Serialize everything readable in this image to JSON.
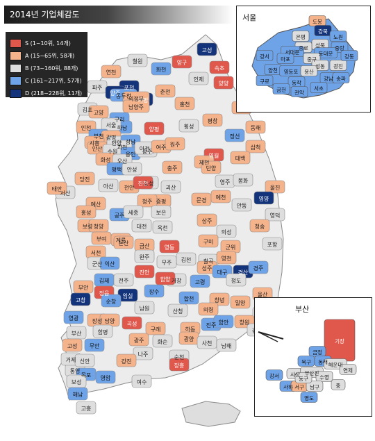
{
  "title": "2014년 기업체감도",
  "legend": [
    {
      "label": "S (1~10위, 14개)",
      "color": "#e0574c"
    },
    {
      "label": "A (15~65위, 58개)",
      "color": "#f5b38c"
    },
    {
      "label": "B (73~160위, 88개)",
      "color": "#dedede"
    },
    {
      "label": "C (161~217위, 57개)",
      "color": "#6fa3e8"
    },
    {
      "label": "D (218~228위, 11개)",
      "color": "#13337a"
    }
  ],
  "insets": {
    "seoul": {
      "title": "서울"
    },
    "busan": {
      "title": "부산"
    }
  },
  "regions": [
    {
      "name": "철원",
      "grade": "B"
    },
    {
      "name": "화천",
      "grade": "C"
    },
    {
      "name": "양구",
      "grade": "S"
    },
    {
      "name": "고성",
      "grade": "D"
    },
    {
      "name": "연천",
      "grade": "A"
    },
    {
      "name": "포천",
      "grade": "D"
    },
    {
      "name": "인제",
      "grade": "B"
    },
    {
      "name": "속초",
      "grade": "S"
    },
    {
      "name": "양양",
      "grade": "S"
    },
    {
      "name": "춘천",
      "grade": "A"
    },
    {
      "name": "파주",
      "grade": "B"
    },
    {
      "name": "양주",
      "grade": "D"
    },
    {
      "name": "가평",
      "grade": "D"
    },
    {
      "name": "동두천",
      "grade": "C"
    },
    {
      "name": "의정부",
      "grade": "A"
    },
    {
      "name": "남양주",
      "grade": "A"
    },
    {
      "name": "홍천",
      "grade": "A"
    },
    {
      "name": "강릉",
      "grade": "A"
    },
    {
      "name": "김포",
      "grade": "B"
    },
    {
      "name": "고양",
      "grade": "A"
    },
    {
      "name": "구리",
      "grade": "C"
    },
    {
      "name": "하남",
      "grade": "C"
    },
    {
      "name": "서울",
      "grade": "B"
    },
    {
      "name": "인천",
      "grade": "A"
    },
    {
      "name": "부천",
      "grade": "C"
    },
    {
      "name": "광명",
      "grade": "A"
    },
    {
      "name": "시흥",
      "grade": "A"
    },
    {
      "name": "안산",
      "grade": "A"
    },
    {
      "name": "안양",
      "grade": "B"
    },
    {
      "name": "성남",
      "grade": "C"
    },
    {
      "name": "과천",
      "grade": "B"
    },
    {
      "name": "수원",
      "grade": "B"
    },
    {
      "name": "용인",
      "grade": "C"
    },
    {
      "name": "광주",
      "grade": "B"
    },
    {
      "name": "양평",
      "grade": "S"
    },
    {
      "name": "횡성",
      "grade": "B"
    },
    {
      "name": "평창",
      "grade": "A"
    },
    {
      "name": "정선",
      "grade": "C"
    },
    {
      "name": "동해",
      "grade": "A"
    },
    {
      "name": "화성",
      "grade": "A"
    },
    {
      "name": "오산",
      "grade": "B"
    },
    {
      "name": "이천",
      "grade": "B"
    },
    {
      "name": "여주",
      "grade": "A"
    },
    {
      "name": "원주",
      "grade": "A"
    },
    {
      "name": "영월",
      "grade": "S"
    },
    {
      "name": "삼척",
      "grade": "A"
    },
    {
      "name": "평택",
      "grade": "C"
    },
    {
      "name": "안성",
      "grade": "B"
    },
    {
      "name": "제천",
      "grade": "A"
    },
    {
      "name": "태백",
      "grade": "A"
    },
    {
      "name": "당진",
      "grade": "A"
    },
    {
      "name": "아산",
      "grade": "B"
    },
    {
      "name": "천안",
      "grade": "A"
    },
    {
      "name": "음성",
      "grade": "B"
    },
    {
      "name": "충주",
      "grade": "A"
    },
    {
      "name": "단양",
      "grade": "A"
    },
    {
      "name": "서산",
      "grade": "B"
    },
    {
      "name": "진천",
      "grade": "S"
    },
    {
      "name": "괴산",
      "grade": "B"
    },
    {
      "name": "영주",
      "grade": "B"
    },
    {
      "name": "봉화",
      "grade": "B"
    },
    {
      "name": "울진",
      "grade": "A"
    },
    {
      "name": "태안",
      "grade": "A"
    },
    {
      "name": "예산",
      "grade": "A"
    },
    {
      "name": "증평",
      "grade": "A"
    },
    {
      "name": "청주",
      "grade": "A"
    },
    {
      "name": "문경",
      "grade": "A"
    },
    {
      "name": "예천",
      "grade": "A"
    },
    {
      "name": "영양",
      "grade": "D"
    },
    {
      "name": "홍성",
      "grade": "A"
    },
    {
      "name": "공주",
      "grade": "C"
    },
    {
      "name": "세종",
      "grade": "B"
    },
    {
      "name": "보은",
      "grade": "B"
    },
    {
      "name": "상주",
      "grade": "A"
    },
    {
      "name": "안동",
      "grade": "B"
    },
    {
      "name": "영덕",
      "grade": "B"
    },
    {
      "name": "보령",
      "grade": "A"
    },
    {
      "name": "청양",
      "grade": "A"
    },
    {
      "name": "대전",
      "grade": "B"
    },
    {
      "name": "옥천",
      "grade": "B"
    },
    {
      "name": "의성",
      "grade": "B"
    },
    {
      "name": "청송",
      "grade": "A"
    },
    {
      "name": "부여",
      "grade": "A"
    },
    {
      "name": "계룡",
      "grade": "A"
    },
    {
      "name": "논산",
      "grade": "A"
    },
    {
      "name": "영동",
      "grade": "S"
    },
    {
      "name": "구미",
      "grade": "A"
    },
    {
      "name": "군위",
      "grade": "A"
    },
    {
      "name": "포항",
      "grade": "B"
    },
    {
      "name": "서천",
      "grade": "A"
    },
    {
      "name": "금산",
      "grade": "A"
    },
    {
      "name": "김천",
      "grade": "B"
    },
    {
      "name": "칠곡",
      "grade": "B"
    },
    {
      "name": "영천",
      "grade": "A"
    },
    {
      "name": "군산",
      "grade": "B"
    },
    {
      "name": "익산",
      "grade": "C"
    },
    {
      "name": "완주",
      "grade": "B"
    },
    {
      "name": "무주",
      "grade": "B"
    },
    {
      "name": "성주",
      "grade": "A"
    },
    {
      "name": "경산",
      "grade": "D"
    },
    {
      "name": "경주",
      "grade": "C"
    },
    {
      "name": "김제",
      "grade": "C"
    },
    {
      "name": "전주",
      "grade": "B"
    },
    {
      "name": "진안",
      "grade": "S"
    },
    {
      "name": "거창",
      "grade": "B"
    },
    {
      "name": "고령",
      "grade": "C"
    },
    {
      "name": "대구",
      "grade": "C"
    },
    {
      "name": "청도",
      "grade": "B"
    },
    {
      "name": "부안",
      "grade": "A"
    },
    {
      "name": "정읍",
      "grade": "S"
    },
    {
      "name": "임실",
      "grade": "D"
    },
    {
      "name": "장수",
      "grade": "C"
    },
    {
      "name": "함양",
      "grade": "S"
    },
    {
      "name": "합천",
      "grade": "C"
    },
    {
      "name": "창녕",
      "grade": "A"
    },
    {
      "name": "밀양",
      "grade": "A"
    },
    {
      "name": "울산",
      "grade": "A"
    },
    {
      "name": "양산",
      "grade": "B"
    },
    {
      "name": "고창",
      "grade": "D"
    },
    {
      "name": "순창",
      "grade": "C"
    },
    {
      "name": "남원",
      "grade": "B"
    },
    {
      "name": "산청",
      "grade": "B"
    },
    {
      "name": "의령",
      "grade": "A"
    },
    {
      "name": "영광",
      "grade": "C"
    },
    {
      "name": "장성",
      "grade": "A"
    },
    {
      "name": "담양",
      "grade": "A"
    },
    {
      "name": "곡성",
      "grade": "S"
    },
    {
      "name": "구례",
      "grade": "A"
    },
    {
      "name": "하동",
      "grade": "A"
    },
    {
      "name": "진주",
      "grade": "C"
    },
    {
      "name": "함안",
      "grade": "C"
    },
    {
      "name": "창원",
      "grade": "A"
    },
    {
      "name": "김해",
      "grade": "B"
    },
    {
      "name": "부산",
      "grade": "B"
    },
    {
      "name": "함평",
      "grade": "B"
    },
    {
      "name": "광주",
      "grade": "A"
    },
    {
      "name": "화순",
      "grade": "B"
    },
    {
      "name": "광양",
      "grade": "A"
    },
    {
      "name": "사천",
      "grade": "B"
    },
    {
      "name": "고성",
      "grade": "A"
    },
    {
      "name": "무안",
      "grade": "C"
    },
    {
      "name": "나주",
      "grade": "B"
    },
    {
      "name": "순천",
      "grade": "B"
    },
    {
      "name": "남해",
      "grade": "B"
    },
    {
      "name": "통영",
      "grade": "B"
    },
    {
      "name": "거제",
      "grade": "B"
    },
    {
      "name": "신안",
      "grade": "B"
    },
    {
      "name": "목포",
      "grade": "C"
    },
    {
      "name": "영암",
      "grade": "C"
    },
    {
      "name": "강진",
      "grade": "A"
    },
    {
      "name": "장흥",
      "grade": "S"
    },
    {
      "name": "보성",
      "grade": "B"
    },
    {
      "name": "여수",
      "grade": "B"
    },
    {
      "name": "해남",
      "grade": "C"
    },
    {
      "name": "고흥",
      "grade": "B"
    },
    {
      "name": "진도",
      "grade": "C"
    },
    {
      "name": "완도",
      "grade": "C"
    },
    {
      "name": "제주",
      "grade": "B"
    }
  ],
  "seoul_districts": [
    {
      "name": "도봉",
      "grade": "A"
    },
    {
      "name": "강북",
      "grade": "D"
    },
    {
      "name": "은평",
      "grade": "B"
    },
    {
      "name": "노원",
      "grade": "C"
    },
    {
      "name": "성북",
      "grade": "B"
    },
    {
      "name": "종로",
      "grade": "B"
    },
    {
      "name": "서대문",
      "grade": "C"
    },
    {
      "name": "중랑",
      "grade": "C"
    },
    {
      "name": "동대문",
      "grade": "C"
    },
    {
      "name": "강서",
      "grade": "C"
    },
    {
      "name": "마포",
      "grade": "C"
    },
    {
      "name": "중구",
      "grade": "B"
    },
    {
      "name": "성동",
      "grade": "B"
    },
    {
      "name": "광진",
      "grade": "B"
    },
    {
      "name": "강동",
      "grade": "C"
    },
    {
      "name": "양천",
      "grade": "C"
    },
    {
      "name": "영등포",
      "grade": "C"
    },
    {
      "name": "용산",
      "grade": "B"
    },
    {
      "name": "구로",
      "grade": "C"
    },
    {
      "name": "동작",
      "grade": "C"
    },
    {
      "name": "강남",
      "grade": "C"
    },
    {
      "name": "송파",
      "grade": "C"
    },
    {
      "name": "금천",
      "grade": "C"
    },
    {
      "name": "관악",
      "grade": "C"
    },
    {
      "name": "서초",
      "grade": "C"
    }
  ],
  "busan_districts": [
    {
      "name": "기장",
      "grade": "S"
    },
    {
      "name": "금정",
      "grade": "C"
    },
    {
      "name": "북구",
      "grade": "C"
    },
    {
      "name": "동래",
      "grade": "C"
    },
    {
      "name": "해운대",
      "grade": "B"
    },
    {
      "name": "연제",
      "grade": "B"
    },
    {
      "name": "강서",
      "grade": "C"
    },
    {
      "name": "사상",
      "grade": "B"
    },
    {
      "name": "부산진",
      "grade": "B"
    },
    {
      "name": "수영",
      "grade": "B"
    },
    {
      "name": "사하",
      "grade": "C"
    },
    {
      "name": "서구",
      "grade": "A"
    },
    {
      "name": "남구",
      "grade": "B"
    },
    {
      "name": "동구",
      "grade": "B"
    },
    {
      "name": "중",
      "grade": "B"
    },
    {
      "name": "영도",
      "grade": "C"
    }
  ]
}
